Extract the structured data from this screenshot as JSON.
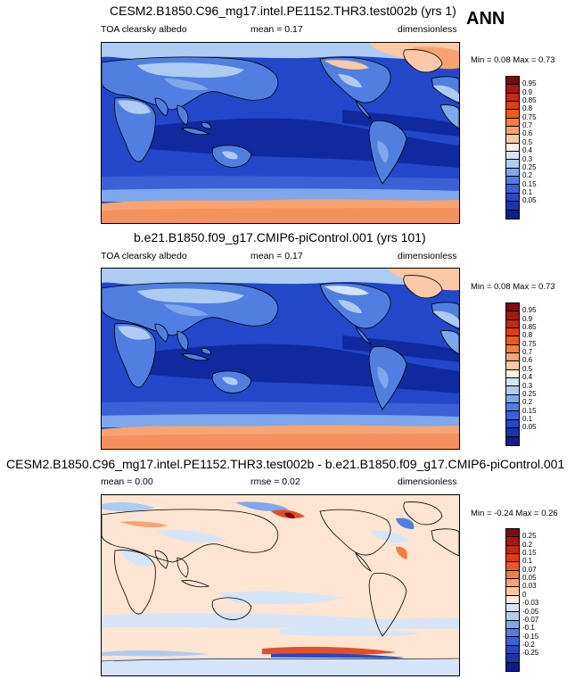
{
  "season": "ANN",
  "panels": [
    {
      "title": "CESM2.B1850.C96_mg17.intel.PE1152.THR3.test002b (yrs 1)",
      "left_label": "TOA clearsky albedo",
      "center_label": "mean =  0.17",
      "right_label": "dimensionless",
      "minmax": "Min =  0.08 Max =  0.73",
      "colorbar_levels": [
        "0.95",
        "0.9",
        "0.85",
        "0.8",
        "0.75",
        "0.7",
        "0.6",
        "0.5",
        "0.4",
        "0.3",
        "0.25",
        "0.2",
        "0.15",
        "0.1",
        "0.05"
      ],
      "colorbar_colors": [
        "#7b0d0d",
        "#a51a0f",
        "#c6290f",
        "#de3e14",
        "#ec5a24",
        "#f27e45",
        "#f7a472",
        "#fbc9a5",
        "#fdf0e4",
        "#d6e4f7",
        "#aecbf2",
        "#7ea7ec",
        "#517fe1",
        "#3a62d6",
        "#2748c4",
        "#1a35a8",
        "#0d1f8a"
      ]
    },
    {
      "title": "b.e21.B1850.f09_g17.CMIP6-piControl.001 (yrs 101)",
      "left_label": "TOA clearsky albedo",
      "center_label": "mean =  0.17",
      "right_label": "dimensionless",
      "minmax": "Min =  0.08 Max =  0.73",
      "colorbar_levels": [
        "0.95",
        "0.9",
        "0.85",
        "0.8",
        "0.75",
        "0.7",
        "0.6",
        "0.5",
        "0.4",
        "0.3",
        "0.25",
        "0.2",
        "0.15",
        "0.1",
        "0.05"
      ],
      "colorbar_colors": [
        "#7b0d0d",
        "#a51a0f",
        "#c6290f",
        "#de3e14",
        "#ec5a24",
        "#f27e45",
        "#f7a472",
        "#fbc9a5",
        "#fdf0e4",
        "#d6e4f7",
        "#aecbf2",
        "#7ea7ec",
        "#517fe1",
        "#3a62d6",
        "#2748c4",
        "#1a35a8",
        "#0d1f8a"
      ]
    },
    {
      "title": "CESM2.B1850.C96_mg17.intel.PE1152.THR3.test002b - b.e21.B1850.f09_g17.CMIP6-piControl.001",
      "left_label": "mean =  0.00",
      "center_label": "rmse =  0.02",
      "right_label": "dimensionless",
      "minmax": "Min = -0.24 Max =  0.26",
      "colorbar_levels": [
        "0.25",
        "0.2",
        "0.15",
        "0.1",
        "0.07",
        "0.05",
        "0.03",
        "0",
        "-0.03",
        "-0.05",
        "-0.07",
        "-0.1",
        "-0.15",
        "-0.2",
        "-0.25"
      ],
      "colorbar_colors": [
        "#7b0d0d",
        "#a51a0f",
        "#c6290f",
        "#de3e14",
        "#ec5a24",
        "#f27e45",
        "#f7a472",
        "#fbc9a5",
        "#fdf0e4",
        "#d6e4f7",
        "#aecbf2",
        "#7ea7ec",
        "#517fe1",
        "#3a62d6",
        "#2748c4",
        "#1a35a8",
        "#0d1f8a"
      ]
    }
  ],
  "colors": {
    "ocean_dark": "#0f2a9e",
    "ocean_mid": "#2248c9",
    "ocean_light": "#3a62d6",
    "land": "#517fe1",
    "land_bright": "#aecbf2",
    "ice": "#f7a472",
    "ice_light": "#fbc9a5",
    "diff_bg": "#fde5d2",
    "diff_blue": "#cfe0f5",
    "diff_red": "#e0502a",
    "diff_darkblue": "#2748c4"
  }
}
